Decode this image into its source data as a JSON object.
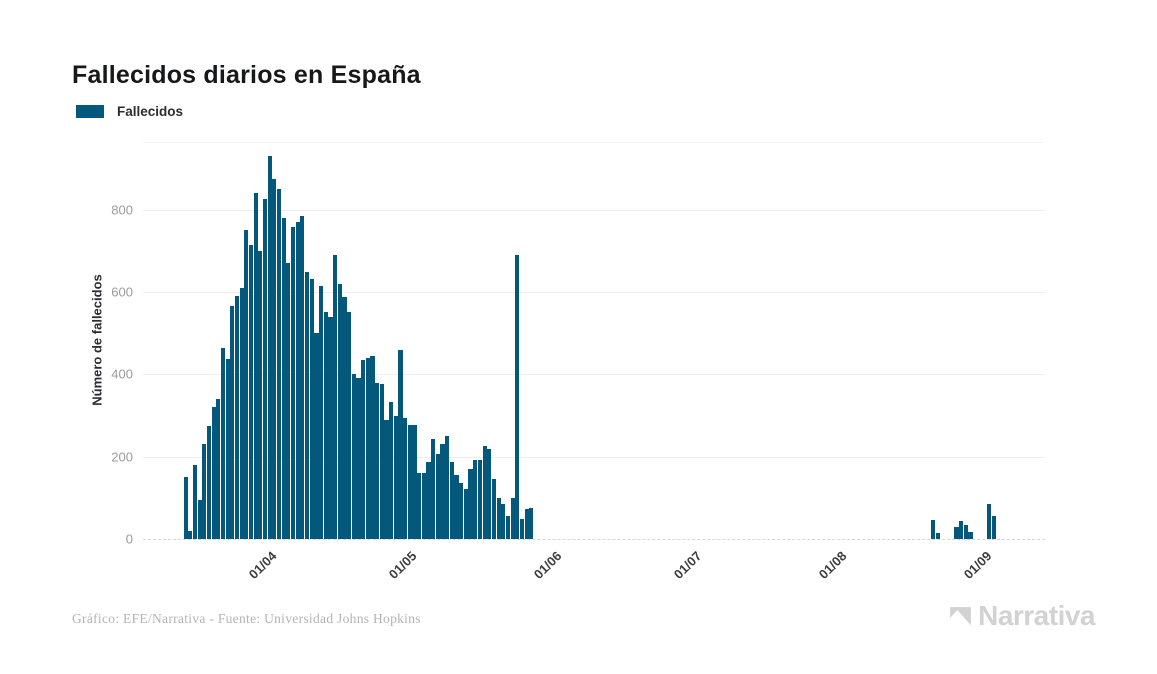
{
  "header": {
    "title": "Fallecidos diarios en España"
  },
  "legend": {
    "label": "Fallecidos",
    "swatch_color": "#04587C"
  },
  "footer": {
    "credit": "Gráfico: EFE/Narrativa - Fuente: Universidad Johns Hopkins"
  },
  "brand": {
    "name": "Narrativa",
    "logo_color": "#d2d2d2"
  },
  "chart_data": {
    "type": "bar",
    "title": "Fallecidos diarios en España",
    "series_name": "Fallecidos",
    "bar_color": "#04587C",
    "ylabel": "Número de fallecidos",
    "xlabel": "",
    "grid": true,
    "legend_position": "top-left",
    "y_ticks": [
      0,
      200,
      400,
      600,
      800
    ],
    "y_max": 962,
    "x_start_date": "14/03/2020",
    "x_end_date": "06/09/2020",
    "x_tick_labels": [
      "01/04",
      "01/05",
      "01/06",
      "01/07",
      "01/08",
      "01/09"
    ],
    "x_tick_indices": [
      18,
      48,
      79,
      109,
      140,
      171
    ],
    "values": [
      150,
      20,
      180,
      95,
      230,
      275,
      320,
      340,
      465,
      437,
      565,
      590,
      610,
      750,
      715,
      840,
      700,
      825,
      930,
      875,
      850,
      780,
      670,
      758,
      770,
      785,
      649,
      631,
      501,
      615,
      551,
      540,
      690,
      620,
      588,
      551,
      402,
      390,
      435,
      440,
      444,
      380,
      376,
      288,
      333,
      300,
      458,
      295,
      278,
      278,
      160,
      160,
      187,
      244,
      207,
      230,
      250,
      187,
      155,
      137,
      122,
      171,
      191,
      191,
      226,
      218,
      145,
      100,
      86,
      57,
      100,
      690,
      49,
      72,
      75,
      0,
      0,
      0,
      0,
      0,
      0,
      0,
      0,
      0,
      0,
      0,
      0,
      0,
      0,
      0,
      0,
      0,
      0,
      0,
      0,
      0,
      0,
      0,
      0,
      0,
      0,
      0,
      0,
      0,
      0,
      0,
      0,
      0,
      0,
      0,
      0,
      0,
      0,
      0,
      0,
      0,
      0,
      0,
      0,
      0,
      0,
      0,
      0,
      0,
      0,
      0,
      0,
      0,
      0,
      0,
      0,
      0,
      0,
      0,
      0,
      0,
      0,
      0,
      0,
      0,
      0,
      0,
      0,
      0,
      0,
      0,
      0,
      0,
      0,
      0,
      0,
      0,
      0,
      0,
      0,
      0,
      0,
      0,
      0,
      0,
      45,
      15,
      0,
      0,
      0,
      30,
      43,
      33,
      17,
      0,
      0,
      0,
      85,
      55,
      0,
      0,
      0
    ]
  }
}
